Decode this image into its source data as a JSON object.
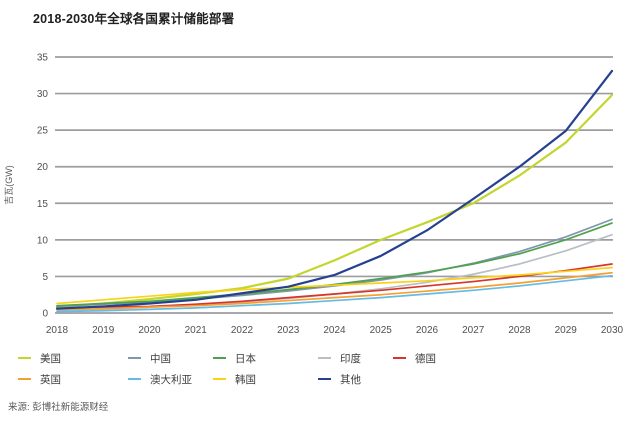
{
  "page": {
    "title": "2018-2030年全球各国累计储能部署",
    "source": "来源: 彭博社新能源财经"
  },
  "chart_data": {
    "type": "line",
    "title": "2018-2030年全球各国累计储能部署",
    "xlabel": "",
    "ylabel": "吉瓦(GW)",
    "x": [
      2018,
      2019,
      2020,
      2021,
      2022,
      2023,
      2024,
      2025,
      2026,
      2027,
      2028,
      2029,
      2030
    ],
    "ylim": [
      0,
      35
    ],
    "yticks": [
      0,
      5,
      10,
      15,
      20,
      25,
      30,
      35
    ],
    "grid": "horizontal",
    "legend_position": "bottom",
    "series": [
      {
        "name": "美国",
        "color": "#c3d62e",
        "values": [
          0.8,
          1.3,
          1.9,
          2.6,
          3.4,
          4.7,
          7.2,
          10.0,
          12.4,
          15.0,
          18.8,
          23.3,
          29.8
        ]
      },
      {
        "name": "中国",
        "color": "#8296ad",
        "values": [
          0.9,
          1.2,
          1.5,
          1.9,
          2.4,
          3.0,
          3.7,
          4.5,
          5.5,
          6.8,
          8.4,
          10.4,
          12.8
        ]
      },
      {
        "name": "日本",
        "color": "#4ea24e",
        "values": [
          1.0,
          1.3,
          1.6,
          2.1,
          2.6,
          3.2,
          3.9,
          4.7,
          5.6,
          6.7,
          8.1,
          10.0,
          12.3
        ]
      },
      {
        "name": "印度",
        "color": "#b9bfc4",
        "values": [
          0.3,
          0.5,
          0.8,
          1.1,
          1.5,
          2.0,
          2.6,
          3.3,
          4.2,
          5.3,
          6.7,
          8.5,
          10.7
        ]
      },
      {
        "name": "德国",
        "color": "#d6352b",
        "values": [
          0.6,
          0.8,
          0.9,
          1.2,
          1.6,
          2.1,
          2.6,
          3.1,
          3.7,
          4.3,
          5.0,
          5.8,
          6.7
        ]
      },
      {
        "name": "英国",
        "color": "#f5a033",
        "values": [
          0.5,
          0.6,
          0.8,
          1.0,
          1.3,
          1.7,
          2.1,
          2.5,
          3.0,
          3.5,
          4.1,
          4.8,
          5.5
        ]
      },
      {
        "name": "澳大利亚",
        "color": "#66bbe3",
        "values": [
          0.2,
          0.3,
          0.5,
          0.7,
          1.0,
          1.3,
          1.7,
          2.1,
          2.6,
          3.1,
          3.7,
          4.4,
          5.1
        ]
      },
      {
        "name": "韩国",
        "color": "#fad318",
        "values": [
          1.3,
          1.8,
          2.3,
          2.8,
          3.2,
          3.5,
          3.8,
          4.1,
          4.4,
          4.8,
          5.2,
          5.7,
          6.2
        ]
      },
      {
        "name": "其他",
        "color": "#25418f",
        "values": [
          0.6,
          0.9,
          1.3,
          1.8,
          2.7,
          3.6,
          5.2,
          7.8,
          11.3,
          15.6,
          20.0,
          24.9,
          33.1
        ]
      }
    ],
    "emphasized_series": [
      "其他",
      "美国"
    ]
  }
}
